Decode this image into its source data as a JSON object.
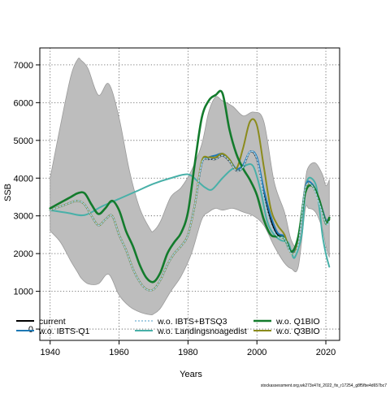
{
  "chart_data": {
    "type": "line",
    "xlabel": "Years",
    "ylabel": "SSB",
    "xlim": [
      1937,
      2024
    ],
    "ylim": [
      -300,
      7450
    ],
    "xticks": [
      1940,
      1960,
      1980,
      2000,
      2020
    ],
    "yticks": [
      0,
      1000,
      2000,
      3000,
      4000,
      5000,
      6000,
      7000
    ],
    "grid": true,
    "legend_position": "bottom",
    "band": {
      "x": [
        1940,
        1943,
        1946,
        1948,
        1949,
        1951,
        1954,
        1957,
        1960,
        1963,
        1966,
        1969,
        1970,
        1972,
        1975,
        1978,
        1981,
        1984,
        1986,
        1988,
        1990,
        1993,
        1996,
        1999,
        2002,
        2005,
        2008,
        2010,
        2012,
        2014,
        2015,
        2017,
        2019,
        2020,
        2021
      ],
      "upper": [
        4000,
        5400,
        6700,
        7150,
        7120,
        6900,
        6200,
        6500,
        5600,
        4200,
        3200,
        2650,
        2600,
        2850,
        3500,
        3750,
        4200,
        4900,
        5750,
        6150,
        6050,
        5900,
        5650,
        5750,
        5500,
        3900,
        3100,
        2350,
        2300,
        3900,
        4300,
        4400,
        4100,
        3800,
        3950
      ],
      "lower": [
        2600,
        2300,
        1800,
        1500,
        1350,
        1200,
        1200,
        1450,
        900,
        600,
        450,
        380,
        400,
        550,
        1000,
        1400,
        2000,
        2900,
        3100,
        3200,
        3150,
        3200,
        3100,
        3000,
        2750,
        2200,
        1750,
        1600,
        1650,
        3150,
        3200,
        3100,
        2650,
        2200,
        1900
      ]
    },
    "series": [
      {
        "name": "current",
        "color": "#000000",
        "dash": "solid",
        "x": [
          1940,
          1943,
          1946,
          1948,
          1950,
          1952,
          1954,
          1956,
          1958,
          1960,
          1962,
          1964,
          1966,
          1968,
          1970,
          1972,
          1974,
          1976,
          1978,
          1980,
          1982,
          1984,
          1986,
          1988,
          1990,
          1992,
          1994,
          1996,
          1998,
          2000,
          2002,
          2004,
          2006,
          2008,
          2010,
          2012,
          2014,
          2016,
          2018,
          2020,
          2021
        ],
        "values": [
          3150,
          3250,
          3350,
          3400,
          3300,
          3000,
          2750,
          2900,
          3000,
          2500,
          2100,
          1600,
          1250,
          1050,
          1050,
          1300,
          1700,
          2000,
          2200,
          2500,
          3300,
          4400,
          4500,
          4500,
          4600,
          4450,
          4200,
          4300,
          4700,
          4500,
          3600,
          2900,
          2500,
          2450,
          2050,
          2300,
          3700,
          3800,
          3400,
          2850,
          2900
        ]
      },
      {
        "name": "w.o. IBTS-Q1",
        "color": "#1e78b4",
        "dash": "solid",
        "x": [
          1940,
          1943,
          1946,
          1948,
          1950,
          1952,
          1954,
          1956,
          1958,
          1960,
          1962,
          1964,
          1966,
          1968,
          1970,
          1972,
          1974,
          1976,
          1978,
          1980,
          1982,
          1984,
          1986,
          1988,
          1990,
          1992,
          1994,
          1996,
          1998,
          2000,
          2002,
          2004,
          2006,
          2008,
          2010,
          2012,
          2014,
          2016,
          2018,
          2020,
          2021
        ],
        "values": [
          3150,
          3250,
          3350,
          3400,
          3300,
          3000,
          2750,
          2900,
          3000,
          2500,
          2100,
          1600,
          1250,
          1050,
          1050,
          1300,
          1700,
          2000,
          2200,
          2500,
          3300,
          4400,
          4550,
          4600,
          4650,
          4500,
          4250,
          4350,
          4700,
          4550,
          3700,
          3000,
          2550,
          2450,
          2050,
          2300,
          3750,
          3850,
          3450,
          2900,
          2950
        ]
      },
      {
        "name": "w.o. IBTS+BTSQ3",
        "color": "#a6cee3",
        "dash": "dotted",
        "x": [
          1940,
          1943,
          1946,
          1948,
          1950,
          1952,
          1954,
          1956,
          1958,
          1960,
          1962,
          1964,
          1966,
          1968,
          1970,
          1972,
          1974,
          1976,
          1978,
          1980,
          1982,
          1984,
          1986,
          1988,
          1990,
          1992,
          1994,
          1996,
          1998,
          2000,
          2002,
          2004,
          2006,
          2008,
          2010,
          2012,
          2014,
          2016,
          2018,
          2020,
          2021
        ],
        "values": [
          3150,
          3250,
          3350,
          3400,
          3300,
          3000,
          2750,
          2900,
          3000,
          2500,
          2100,
          1600,
          1250,
          1050,
          1050,
          1300,
          1700,
          2000,
          2200,
          2500,
          3300,
          4400,
          4500,
          4500,
          4600,
          4450,
          4200,
          4300,
          4700,
          4500,
          3500,
          2800,
          2450,
          2400,
          2000,
          2250,
          3700,
          3800,
          3350,
          2800,
          2850
        ]
      },
      {
        "name": "w.o. Landingsnoagedist",
        "color": "#48b0a8",
        "dash": "solid",
        "x": [
          1940,
          1945,
          1950,
          1955,
          1960,
          1965,
          1970,
          1975,
          1980,
          1983,
          1985,
          1987,
          1990,
          1993,
          1995,
          1997,
          1999,
          2001,
          2003,
          2005,
          2007,
          2009,
          2010,
          2011,
          2013,
          2014,
          2015,
          2017,
          2018,
          2019,
          2020,
          2021
        ],
        "values": [
          3150,
          3080,
          3020,
          3250,
          3450,
          3650,
          3850,
          4000,
          4100,
          3900,
          3750,
          3700,
          4000,
          4250,
          4200,
          4350,
          4300,
          3700,
          2850,
          2500,
          2350,
          2300,
          2050,
          1900,
          2500,
          3600,
          4000,
          3850,
          3300,
          2500,
          2000,
          1650
        ]
      },
      {
        "name": "w.o. Q1BIO",
        "color": "#137b2c",
        "dash": "solid",
        "x": [
          1940,
          1942,
          1944,
          1946,
          1948,
          1950,
          1952,
          1954,
          1956,
          1958,
          1960,
          1962,
          1964,
          1966,
          1968,
          1970,
          1972,
          1974,
          1976,
          1978,
          1980,
          1982,
          1984,
          1986,
          1988,
          1990,
          1992,
          1994,
          1996,
          1998,
          2000,
          2002,
          2004,
          2006,
          2008,
          2010,
          2012,
          2014,
          2016,
          2018,
          2020,
          2021
        ],
        "values": [
          3200,
          3300,
          3400,
          3500,
          3600,
          3600,
          3300,
          3050,
          3200,
          3400,
          3150,
          2600,
          2200,
          1700,
          1350,
          1250,
          1500,
          2000,
          2300,
          2550,
          3100,
          4400,
          5600,
          6050,
          6200,
          6250,
          5300,
          4650,
          4250,
          3950,
          3550,
          2900,
          2500,
          2450,
          2400,
          2050,
          2450,
          3600,
          3800,
          3450,
          2800,
          2950
        ]
      },
      {
        "name": "w.o. Q3BIO",
        "color": "#8b8b1c",
        "dash": "solid",
        "x": [
          1940,
          1943,
          1946,
          1948,
          1950,
          1952,
          1954,
          1956,
          1958,
          1960,
          1962,
          1964,
          1966,
          1968,
          1970,
          1972,
          1974,
          1976,
          1978,
          1980,
          1982,
          1984,
          1986,
          1988,
          1990,
          1992,
          1994,
          1996,
          1998,
          2000,
          2002,
          2004,
          2006,
          2008,
          2010,
          2012,
          2014,
          2016,
          2018,
          2020,
          2021
        ],
        "values": [
          3150,
          3250,
          3350,
          3400,
          3300,
          3000,
          2750,
          2900,
          3000,
          2500,
          2100,
          1600,
          1250,
          1050,
          1050,
          1300,
          1700,
          2000,
          2200,
          2500,
          3300,
          4450,
          4550,
          4550,
          4650,
          4500,
          4250,
          4800,
          5500,
          5400,
          4300,
          3200,
          2750,
          2500,
          2000,
          2300,
          3700,
          3800,
          3400,
          2850,
          2900
        ]
      }
    ],
    "legend": [
      {
        "label": "current",
        "series": 0
      },
      {
        "label": "w.o. IBTS-Q1",
        "series": 1
      },
      {
        "label": "w.o. IBTS+BTSQ3",
        "series": 2
      },
      {
        "label": "w.o. Landingsnoagedist",
        "series": 3
      },
      {
        "label": "w.o. Q1BIO",
        "series": 4
      },
      {
        "label": "w.o. Q3BIO",
        "series": 5
      }
    ]
  },
  "footnote": "stockassessment.org,wk273x47d_2022_fix_r17254_g8f5fbe4d657bc7"
}
